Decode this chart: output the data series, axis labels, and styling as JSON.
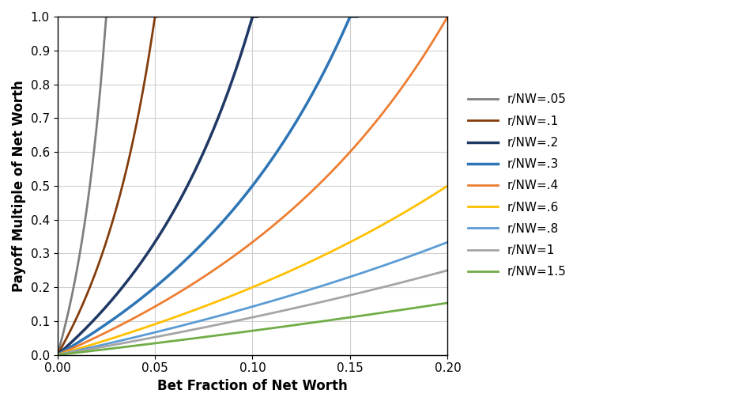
{
  "series": [
    {
      "label": "r/NW=.05",
      "r_nw": 0.05,
      "color": "#7F7F7F",
      "lw": 2.0
    },
    {
      "label": "r/NW=.1",
      "r_nw": 0.1,
      "color": "#843C0C",
      "lw": 2.0
    },
    {
      "label": "r/NW=.2",
      "r_nw": 0.2,
      "color": "#1F3864",
      "lw": 2.5
    },
    {
      "label": "r/NW=.3",
      "r_nw": 0.3,
      "color": "#2E75B6",
      "lw": 2.5
    },
    {
      "label": "r/NW=.4",
      "r_nw": 0.4,
      "color": "#ED7D31",
      "lw": 2.0
    },
    {
      "label": "r/NW=.6",
      "r_nw": 0.6,
      "color": "#FFC000",
      "lw": 2.0
    },
    {
      "label": "r/NW=.8",
      "r_nw": 0.8,
      "color": "#5B9BD5",
      "lw": 2.0
    },
    {
      "label": "r/NW=1",
      "r_nw": 1.0,
      "color": "#A5A5A5",
      "lw": 2.0
    },
    {
      "label": "r/NW=1.5",
      "r_nw": 1.5,
      "color": "#70AD47",
      "lw": 2.0
    }
  ],
  "xlim": [
    0,
    0.2
  ],
  "ylim": [
    0.0,
    1.0
  ],
  "xlabel": "Bet Fraction of Net Worth",
  "ylabel": "Payoff Multiple of Net Worth",
  "grid": true,
  "bg_color": "#FFFFFF",
  "title": "",
  "formula_exponent": 2
}
